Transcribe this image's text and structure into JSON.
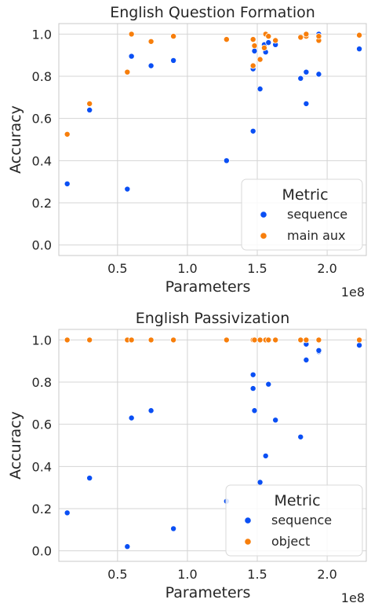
{
  "chart_data": [
    {
      "type": "scatter",
      "title": "English Question Formation",
      "xlabel": "Parameters",
      "ylabel": "Accuracy",
      "x_scale_label": "1e8",
      "xlim": [
        0.08,
        2.28
      ],
      "ylim": [
        -0.05,
        1.05
      ],
      "x_ticks": [
        0.5,
        1.0,
        1.5,
        2.0
      ],
      "x_tick_labels": [
        "0.5",
        "1.0",
        "1.5",
        "2.0"
      ],
      "y_ticks": [
        0.0,
        0.2,
        0.4,
        0.6,
        0.8,
        1.0
      ],
      "y_tick_labels": [
        "0.0",
        "0.2",
        "0.4",
        "0.6",
        "0.8",
        "1.0"
      ],
      "grid": true,
      "legend": {
        "title": "Metric",
        "position": "lower-right"
      },
      "series": [
        {
          "name": "sequence",
          "color": "#0a4ff4",
          "points": [
            [
              0.14,
              0.29
            ],
            [
              0.3,
              0.64
            ],
            [
              0.57,
              0.265
            ],
            [
              0.6,
              0.895
            ],
            [
              0.74,
              0.85
            ],
            [
              0.9,
              0.875
            ],
            [
              1.28,
              0.4
            ],
            [
              1.47,
              0.54
            ],
            [
              1.47,
              0.835
            ],
            [
              1.48,
              0.92
            ],
            [
              1.52,
              0.74
            ],
            [
              1.55,
              0.95
            ],
            [
              1.56,
              0.915
            ],
            [
              1.58,
              0.96
            ],
            [
              1.63,
              0.95
            ],
            [
              1.81,
              0.79
            ],
            [
              1.85,
              0.82
            ],
            [
              1.85,
              0.67
            ],
            [
              1.94,
              0.81
            ],
            [
              1.94,
              1.0
            ],
            [
              2.23,
              0.93
            ]
          ]
        },
        {
          "name": "main aux",
          "color": "#f77e0b",
          "points": [
            [
              0.14,
              0.525
            ],
            [
              0.3,
              0.67
            ],
            [
              0.57,
              0.82
            ],
            [
              0.6,
              1.0
            ],
            [
              0.74,
              0.965
            ],
            [
              0.9,
              0.99
            ],
            [
              1.28,
              0.975
            ],
            [
              1.47,
              0.85
            ],
            [
              1.47,
              0.975
            ],
            [
              1.48,
              0.945
            ],
            [
              1.52,
              0.88
            ],
            [
              1.55,
              0.935
            ],
            [
              1.56,
              1.0
            ],
            [
              1.58,
              0.99
            ],
            [
              1.63,
              0.97
            ],
            [
              1.81,
              0.985
            ],
            [
              1.85,
              0.99
            ],
            [
              1.85,
              1.0
            ],
            [
              1.94,
              0.97
            ],
            [
              1.94,
              0.99
            ],
            [
              2.23,
              0.995
            ]
          ]
        }
      ]
    },
    {
      "type": "scatter",
      "title": "English Passivization",
      "xlabel": "Parameters",
      "ylabel": "Accuracy",
      "x_scale_label": "1e8",
      "xlim": [
        0.08,
        2.28
      ],
      "ylim": [
        -0.05,
        1.05
      ],
      "x_ticks": [
        0.5,
        1.0,
        1.5,
        2.0
      ],
      "x_tick_labels": [
        "0.5",
        "1.0",
        "1.5",
        "2.0"
      ],
      "y_ticks": [
        0.0,
        0.2,
        0.4,
        0.6,
        0.8,
        1.0
      ],
      "y_tick_labels": [
        "0.0",
        "0.2",
        "0.4",
        "0.6",
        "0.8",
        "1.0"
      ],
      "grid": true,
      "legend": {
        "title": "Metric",
        "position": "lower-right"
      },
      "series": [
        {
          "name": "sequence",
          "color": "#0a4ff4",
          "points": [
            [
              0.14,
              0.18
            ],
            [
              0.3,
              0.345
            ],
            [
              0.57,
              0.02
            ],
            [
              0.6,
              0.63
            ],
            [
              0.74,
              0.665
            ],
            [
              0.9,
              0.105
            ],
            [
              1.28,
              0.235
            ],
            [
              1.47,
              0.835
            ],
            [
              1.47,
              0.77
            ],
            [
              1.48,
              0.665
            ],
            [
              1.52,
              0.325
            ],
            [
              1.56,
              0.45
            ],
            [
              1.58,
              0.79
            ],
            [
              1.63,
              0.62
            ],
            [
              1.81,
              0.54
            ],
            [
              1.85,
              0.905
            ],
            [
              1.85,
              0.98
            ],
            [
              1.94,
              0.945
            ],
            [
              1.94,
              0.95
            ],
            [
              2.23,
              0.975
            ]
          ]
        },
        {
          "name": "object",
          "color": "#f77e0b",
          "points": [
            [
              0.14,
              1.0
            ],
            [
              0.3,
              1.0
            ],
            [
              0.57,
              1.0
            ],
            [
              0.6,
              1.0
            ],
            [
              0.74,
              1.0
            ],
            [
              0.9,
              1.0
            ],
            [
              1.28,
              1.0
            ],
            [
              1.47,
              1.0
            ],
            [
              1.48,
              1.0
            ],
            [
              1.52,
              1.0
            ],
            [
              1.56,
              1.0
            ],
            [
              1.58,
              1.0
            ],
            [
              1.63,
              1.0
            ],
            [
              1.81,
              1.0
            ],
            [
              1.85,
              1.0
            ],
            [
              1.94,
              1.0
            ],
            [
              2.23,
              1.0
            ]
          ]
        }
      ]
    }
  ]
}
